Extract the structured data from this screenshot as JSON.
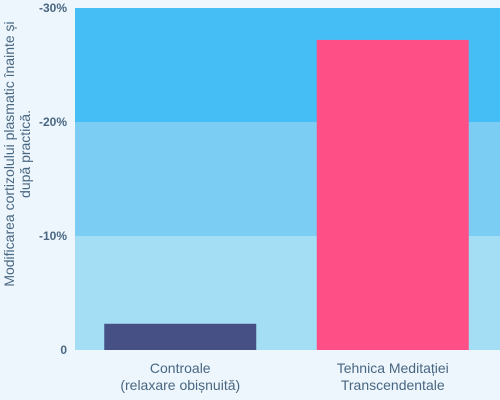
{
  "chart_data": {
    "type": "bar",
    "ylabel": [
      "Modificarea cortizolului plasmatic înainte și",
      "după practică."
    ],
    "categories": [
      [
        "Controale",
        "(relaxare obișnuită)"
      ],
      [
        "Tehnica Meditației",
        "Transcendentale"
      ]
    ],
    "values": [
      -2.3,
      -27.2
    ],
    "ylim": [
      0,
      -30
    ],
    "yticks": [
      {
        "value": 0,
        "label": "0"
      },
      {
        "value": -10,
        "label": "-10%"
      },
      {
        "value": -20,
        "label": "-20%"
      },
      {
        "value": -30,
        "label": "-30%"
      }
    ],
    "grid": false,
    "colors": {
      "bars": [
        "#465085",
        "#fe4f87"
      ],
      "bands": [
        "#a3def5",
        "#7ccdf3",
        "#45bdf5"
      ],
      "background": "#ecf6fc"
    }
  }
}
